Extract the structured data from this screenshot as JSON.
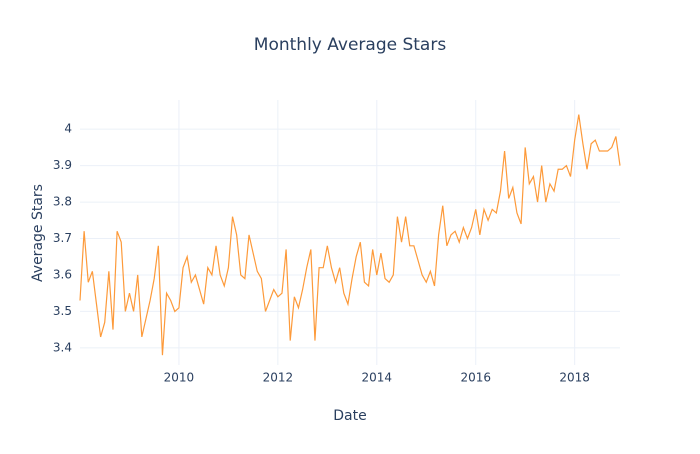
{
  "chart_data": {
    "type": "line",
    "title": "Monthly Average Stars",
    "x_label": "Date",
    "y_label": "Average Stars",
    "x": [
      "2008-01",
      "2008-02",
      "2008-03",
      "2008-04",
      "2008-05",
      "2008-06",
      "2008-07",
      "2008-08",
      "2008-09",
      "2008-10",
      "2008-11",
      "2008-12",
      "2009-01",
      "2009-02",
      "2009-03",
      "2009-04",
      "2009-05",
      "2009-06",
      "2009-07",
      "2009-08",
      "2009-09",
      "2009-10",
      "2009-11",
      "2009-12",
      "2010-01",
      "2010-02",
      "2010-03",
      "2010-04",
      "2010-05",
      "2010-06",
      "2010-07",
      "2010-08",
      "2010-09",
      "2010-10",
      "2010-11",
      "2010-12",
      "2011-01",
      "2011-02",
      "2011-03",
      "2011-04",
      "2011-05",
      "2011-06",
      "2011-07",
      "2011-08",
      "2011-09",
      "2011-10",
      "2011-11",
      "2011-12",
      "2012-01",
      "2012-02",
      "2012-03",
      "2012-04",
      "2012-05",
      "2012-06",
      "2012-07",
      "2012-08",
      "2012-09",
      "2012-10",
      "2012-11",
      "2012-12",
      "2013-01",
      "2013-02",
      "2013-03",
      "2013-04",
      "2013-05",
      "2013-06",
      "2013-07",
      "2013-08",
      "2013-09",
      "2013-10",
      "2013-11",
      "2013-12",
      "2014-01",
      "2014-02",
      "2014-03",
      "2014-04",
      "2014-05",
      "2014-06",
      "2014-07",
      "2014-08",
      "2014-09",
      "2014-10",
      "2014-11",
      "2014-12",
      "2015-01",
      "2015-02",
      "2015-03",
      "2015-04",
      "2015-05",
      "2015-06",
      "2015-07",
      "2015-08",
      "2015-09",
      "2015-10",
      "2015-11",
      "2015-12",
      "2016-01",
      "2016-02",
      "2016-03",
      "2016-04",
      "2016-05",
      "2016-06",
      "2016-07",
      "2016-08",
      "2016-09",
      "2016-10",
      "2016-11",
      "2016-12",
      "2017-01",
      "2017-02",
      "2017-03",
      "2017-04",
      "2017-05",
      "2017-06",
      "2017-07",
      "2017-08",
      "2017-09",
      "2017-10",
      "2017-11",
      "2017-12",
      "2018-01",
      "2018-02",
      "2018-03",
      "2018-04",
      "2018-05",
      "2018-06",
      "2018-07",
      "2018-08",
      "2018-09",
      "2018-10",
      "2018-11",
      "2018-12"
    ],
    "values": [
      3.53,
      3.72,
      3.58,
      3.61,
      3.52,
      3.43,
      3.47,
      3.61,
      3.45,
      3.72,
      3.69,
      3.5,
      3.55,
      3.5,
      3.6,
      3.43,
      3.48,
      3.53,
      3.59,
      3.68,
      3.38,
      3.55,
      3.53,
      3.5,
      3.51,
      3.62,
      3.65,
      3.58,
      3.6,
      3.56,
      3.52,
      3.62,
      3.6,
      3.68,
      3.6,
      3.57,
      3.62,
      3.76,
      3.71,
      3.6,
      3.59,
      3.71,
      3.66,
      3.61,
      3.59,
      3.5,
      3.53,
      3.56,
      3.54,
      3.55,
      3.67,
      3.42,
      3.54,
      3.51,
      3.56,
      3.62,
      3.67,
      3.42,
      3.62,
      3.62,
      3.68,
      3.62,
      3.58,
      3.62,
      3.55,
      3.52,
      3.59,
      3.65,
      3.69,
      3.58,
      3.57,
      3.67,
      3.6,
      3.66,
      3.59,
      3.58,
      3.6,
      3.76,
      3.69,
      3.76,
      3.68,
      3.68,
      3.64,
      3.6,
      3.58,
      3.61,
      3.57,
      3.71,
      3.79,
      3.68,
      3.71,
      3.72,
      3.69,
      3.73,
      3.7,
      3.73,
      3.78,
      3.71,
      3.78,
      3.75,
      3.78,
      3.77,
      3.83,
      3.94,
      3.81,
      3.84,
      3.77,
      3.74,
      3.95,
      3.85,
      3.87,
      3.8,
      3.9,
      3.8,
      3.85,
      3.83,
      3.89,
      3.89,
      3.9,
      3.87,
      3.97,
      4.04,
      3.96,
      3.89,
      3.96,
      3.97,
      3.94,
      3.94,
      3.94,
      3.95,
      3.98,
      3.9
    ],
    "color": "#fd9a3a",
    "xlim": [
      "2008-01",
      "2018-12"
    ],
    "xticks": [
      "2010",
      "2012",
      "2014",
      "2016",
      "2018"
    ],
    "ylim": [
      3.353,
      4.08
    ],
    "yticks": [
      3.4,
      3.5,
      3.6,
      3.7,
      3.8,
      3.9,
      4
    ],
    "grid": true
  }
}
